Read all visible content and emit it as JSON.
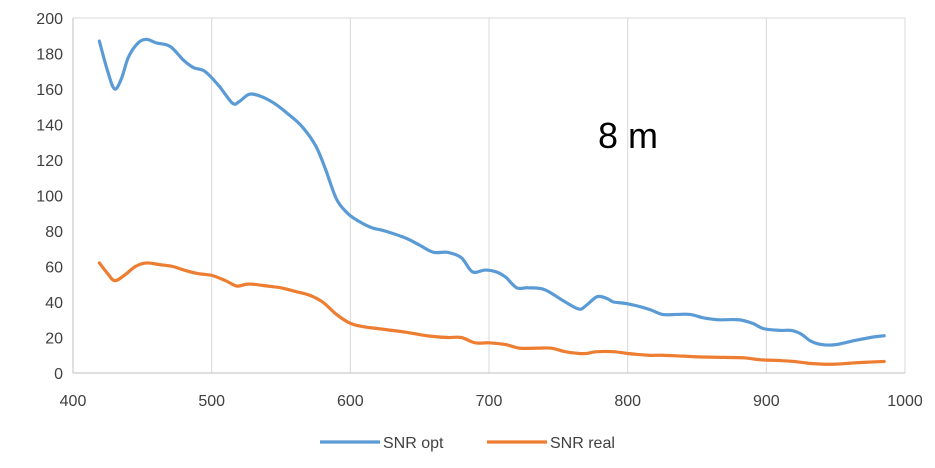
{
  "chart_data": {
    "type": "line",
    "title": "",
    "xlabel": "",
    "ylabel": "",
    "xlim": [
      400,
      1000
    ],
    "ylim": [
      0,
      200
    ],
    "x_ticks": [
      400,
      500,
      600,
      700,
      800,
      900,
      1000
    ],
    "y_ticks": [
      0,
      20,
      40,
      60,
      80,
      100,
      120,
      140,
      160,
      180,
      200
    ],
    "grid": "vertical",
    "legend_position": "bottom",
    "annotation": "8 m",
    "series": [
      {
        "name": "SNR opt",
        "color": "#5B9BD5",
        "points": [
          [
            419,
            187
          ],
          [
            425,
            170
          ],
          [
            430,
            160
          ],
          [
            435,
            166
          ],
          [
            440,
            178
          ],
          [
            447,
            186
          ],
          [
            453,
            188
          ],
          [
            460,
            186
          ],
          [
            470,
            184
          ],
          [
            480,
            176
          ],
          [
            487,
            172
          ],
          [
            495,
            170
          ],
          [
            505,
            162
          ],
          [
            515,
            152
          ],
          [
            520,
            153
          ],
          [
            527,
            157
          ],
          [
            535,
            156
          ],
          [
            545,
            152
          ],
          [
            555,
            146
          ],
          [
            565,
            139
          ],
          [
            575,
            128
          ],
          [
            582,
            115
          ],
          [
            590,
            98
          ],
          [
            598,
            90
          ],
          [
            605,
            86
          ],
          [
            615,
            82
          ],
          [
            625,
            80
          ],
          [
            640,
            76
          ],
          [
            650,
            72
          ],
          [
            660,
            68
          ],
          [
            670,
            68
          ],
          [
            680,
            65
          ],
          [
            688,
            57
          ],
          [
            697,
            58
          ],
          [
            705,
            57
          ],
          [
            712,
            54
          ],
          [
            720,
            48
          ],
          [
            728,
            48
          ],
          [
            740,
            47
          ],
          [
            755,
            40
          ],
          [
            765,
            36
          ],
          [
            770,
            38
          ],
          [
            778,
            43
          ],
          [
            785,
            42
          ],
          [
            790,
            40
          ],
          [
            800,
            39
          ],
          [
            815,
            36
          ],
          [
            825,
            33
          ],
          [
            835,
            33
          ],
          [
            845,
            33
          ],
          [
            855,
            31
          ],
          [
            865,
            30
          ],
          [
            880,
            30
          ],
          [
            890,
            28
          ],
          [
            898,
            25
          ],
          [
            910,
            24
          ],
          [
            918,
            24
          ],
          [
            925,
            22
          ],
          [
            932,
            18
          ],
          [
            940,
            16
          ],
          [
            950,
            16
          ],
          [
            962,
            18
          ],
          [
            975,
            20
          ],
          [
            985,
            21
          ]
        ]
      },
      {
        "name": "SNR real",
        "color": "#ED7D31",
        "points": [
          [
            419,
            62
          ],
          [
            425,
            56
          ],
          [
            430,
            52
          ],
          [
            437,
            55
          ],
          [
            445,
            60
          ],
          [
            453,
            62
          ],
          [
            463,
            61
          ],
          [
            472,
            60
          ],
          [
            480,
            58
          ],
          [
            490,
            56
          ],
          [
            500,
            55
          ],
          [
            510,
            52
          ],
          [
            518,
            49
          ],
          [
            525,
            50
          ],
          [
            530,
            50
          ],
          [
            540,
            49
          ],
          [
            550,
            48
          ],
          [
            560,
            46
          ],
          [
            570,
            44
          ],
          [
            580,
            40
          ],
          [
            590,
            33
          ],
          [
            600,
            28
          ],
          [
            610,
            26
          ],
          [
            620,
            25
          ],
          [
            640,
            23
          ],
          [
            655,
            21
          ],
          [
            670,
            20
          ],
          [
            680,
            20
          ],
          [
            690,
            17
          ],
          [
            700,
            17
          ],
          [
            712,
            16
          ],
          [
            722,
            14
          ],
          [
            735,
            14
          ],
          [
            745,
            14
          ],
          [
            755,
            12
          ],
          [
            765,
            11
          ],
          [
            770,
            11
          ],
          [
            778,
            12
          ],
          [
            790,
            12
          ],
          [
            800,
            11
          ],
          [
            815,
            10
          ],
          [
            825,
            10
          ],
          [
            840,
            9.5
          ],
          [
            855,
            9
          ],
          [
            870,
            8.8
          ],
          [
            885,
            8.5
          ],
          [
            895,
            7.5
          ],
          [
            910,
            7
          ],
          [
            920,
            6.5
          ],
          [
            930,
            5.5
          ],
          [
            940,
            5
          ],
          [
            950,
            5
          ],
          [
            960,
            5.5
          ],
          [
            970,
            6
          ],
          [
            985,
            6.5
          ]
        ]
      }
    ]
  }
}
